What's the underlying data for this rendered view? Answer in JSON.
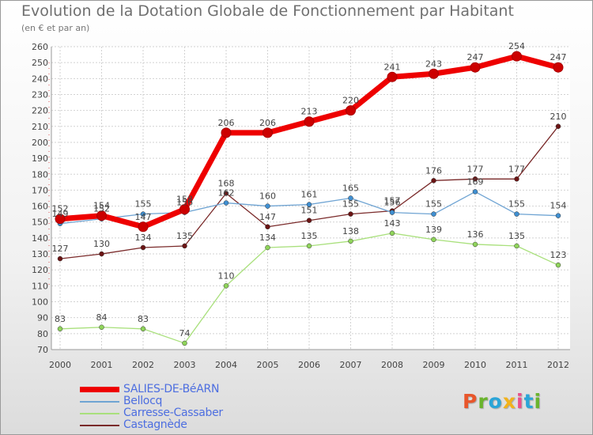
{
  "title": "Evolution de la Dotation Globale de Fonctionnement par Habitant",
  "subtitle": "(en € et par an)",
  "logo": {
    "letters": [
      "P",
      "r",
      "o",
      "x",
      "i",
      "t",
      "i"
    ],
    "colors": [
      "#e8562b",
      "#6ab42d",
      "#2aa5d8",
      "#f2b21b",
      "#e94f8a",
      "#2aa5d8",
      "#6ab42d"
    ]
  },
  "chart_data": {
    "type": "line",
    "x": [
      "2000",
      "2001",
      "2002",
      "2003",
      "2004",
      "2005",
      "2006",
      "2007",
      "2008",
      "2009",
      "2010",
      "2011",
      "2012"
    ],
    "ylim": [
      70,
      260
    ],
    "y_ticks": [
      70,
      80,
      90,
      100,
      110,
      120,
      130,
      140,
      150,
      160,
      170,
      180,
      190,
      200,
      210,
      220,
      230,
      240,
      250,
      260
    ],
    "grid": true,
    "legend_position": "bottom-left",
    "series": [
      {
        "name": "SALIES-DE-BéARN",
        "color": "#ee0000",
        "marker": "#cc0000",
        "thick": true,
        "values": [
          152,
          154,
          147,
          158,
          206,
          206,
          213,
          220,
          241,
          243,
          247,
          254,
          247
        ],
        "labels": [
          "152",
          "154",
          "147",
          "158",
          "206",
          "206",
          "213",
          "220",
          "241",
          "243",
          "247",
          "254",
          "247"
        ]
      },
      {
        "name": "Bellocq",
        "color": "#6fa4d3",
        "marker": "#3f8fd1",
        "values": [
          149,
          152,
          155,
          156,
          162,
          160,
          161,
          165,
          156,
          155,
          169,
          155,
          154
        ],
        "labels": [
          "149",
          "152",
          "155",
          "156",
          "162",
          "160",
          "161",
          "165",
          "156",
          "155",
          "169",
          "155",
          "154"
        ]
      },
      {
        "name": "Carresse-Cassaber",
        "color": "#a9e07c",
        "marker": "#8fd45a",
        "values": [
          83,
          84,
          83,
          74,
          110,
          134,
          135,
          138,
          143,
          139,
          136,
          135,
          123
        ],
        "labels": [
          "83",
          "84",
          "83",
          "74",
          "110",
          "134",
          "135",
          "138",
          "143",
          "139",
          "136",
          "135",
          "123"
        ]
      },
      {
        "name": "Castagnède",
        "color": "#7a2a2a",
        "marker": "#6b1414",
        "values": [
          127,
          130,
          134,
          135,
          168,
          147,
          151,
          155,
          157,
          176,
          177,
          177,
          210
        ],
        "labels": [
          "127",
          "130",
          "134",
          "135",
          "168",
          "147",
          "151",
          "155",
          "157",
          "176",
          "177",
          "177",
          "210"
        ]
      }
    ]
  }
}
